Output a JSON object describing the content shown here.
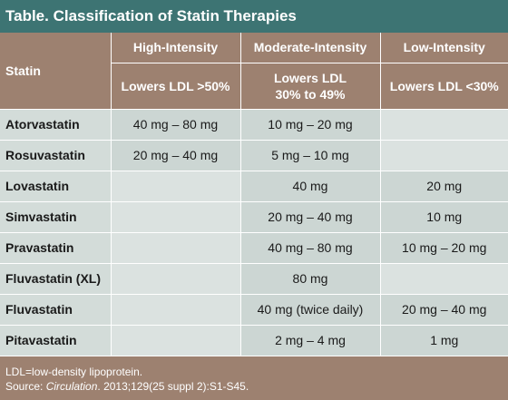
{
  "title": "Table. Classification of Statin Therapies",
  "table": {
    "statin_header": "Statin",
    "columns": [
      {
        "label": "High-Intensity",
        "sub": "Lowers LDL >50%"
      },
      {
        "label": "Moderate-Intensity",
        "sub_line1": "Lowers LDL",
        "sub_line2": "30% to 49%"
      },
      {
        "label": "Low-Intensity",
        "sub": "Lowers LDL <30%"
      }
    ],
    "rows": [
      {
        "name": "Atorvastatin",
        "high": "40 mg – 80 mg",
        "moderate": "10 mg – 20 mg",
        "low": ""
      },
      {
        "name": "Rosuvastatin",
        "high": "20 mg – 40 mg",
        "moderate": "5 mg – 10 mg",
        "low": ""
      },
      {
        "name": "Lovastatin",
        "high": "",
        "moderate": "40 mg",
        "low": "20 mg"
      },
      {
        "name": "Simvastatin",
        "high": "",
        "moderate": "20 mg – 40 mg",
        "low": "10 mg"
      },
      {
        "name": "Pravastatin",
        "high": "",
        "moderate": "40 mg – 80 mg",
        "low": "10 mg – 20 mg"
      },
      {
        "name": "Fluvastatin (XL)",
        "high": "",
        "moderate": "80 mg",
        "low": ""
      },
      {
        "name": "Fluvastatin",
        "high": "",
        "moderate": "40 mg (twice daily)",
        "low": "20 mg – 40 mg"
      },
      {
        "name": "Pitavastatin",
        "high": "",
        "moderate": "2 mg – 4 mg",
        "low": "1 mg"
      }
    ]
  },
  "footer": {
    "abbrev": "LDL=low-density lipoprotein.",
    "source_prefix": "Source: ",
    "source_journal": "Circulation",
    "source_rest": ". 2013;129(25 suppl 2):S1-S45."
  },
  "colors": {
    "title_bg": "#3d7473",
    "header_bg": "#9d8170",
    "row_bg": "#ccd6d3",
    "empty_cell_bg": "#dbe2e0"
  }
}
